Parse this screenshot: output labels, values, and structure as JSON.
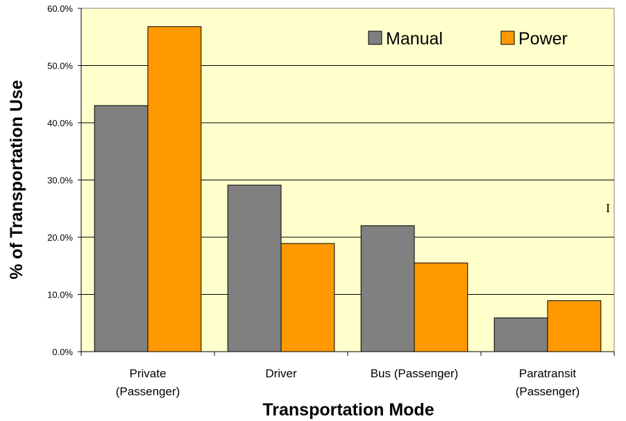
{
  "chart_data": {
    "type": "bar",
    "categories": [
      [
        "Private",
        "(Passenger)"
      ],
      [
        "Driver"
      ],
      [
        "Bus (Passenger)"
      ],
      [
        "Paratransit",
        "(Passenger)"
      ]
    ],
    "series": [
      {
        "name": "Manual",
        "color": "#808080",
        "values": [
          43.0,
          29.1,
          22.0,
          5.9
        ]
      },
      {
        "name": "Power",
        "color": "#FF9900",
        "values": [
          56.8,
          18.9,
          15.5,
          8.9
        ]
      }
    ],
    "xlabel": "Transportation Mode",
    "ylabel": "% of Transportation Use",
    "ylim": [
      0,
      60
    ],
    "yticks": [
      "0.0%",
      "10.0%",
      "20.0%",
      "30.0%",
      "40.0%",
      "50.0%",
      "60.0%"
    ],
    "grid": true,
    "legend": "top-right",
    "plot_background": "#FFFFCC"
  }
}
